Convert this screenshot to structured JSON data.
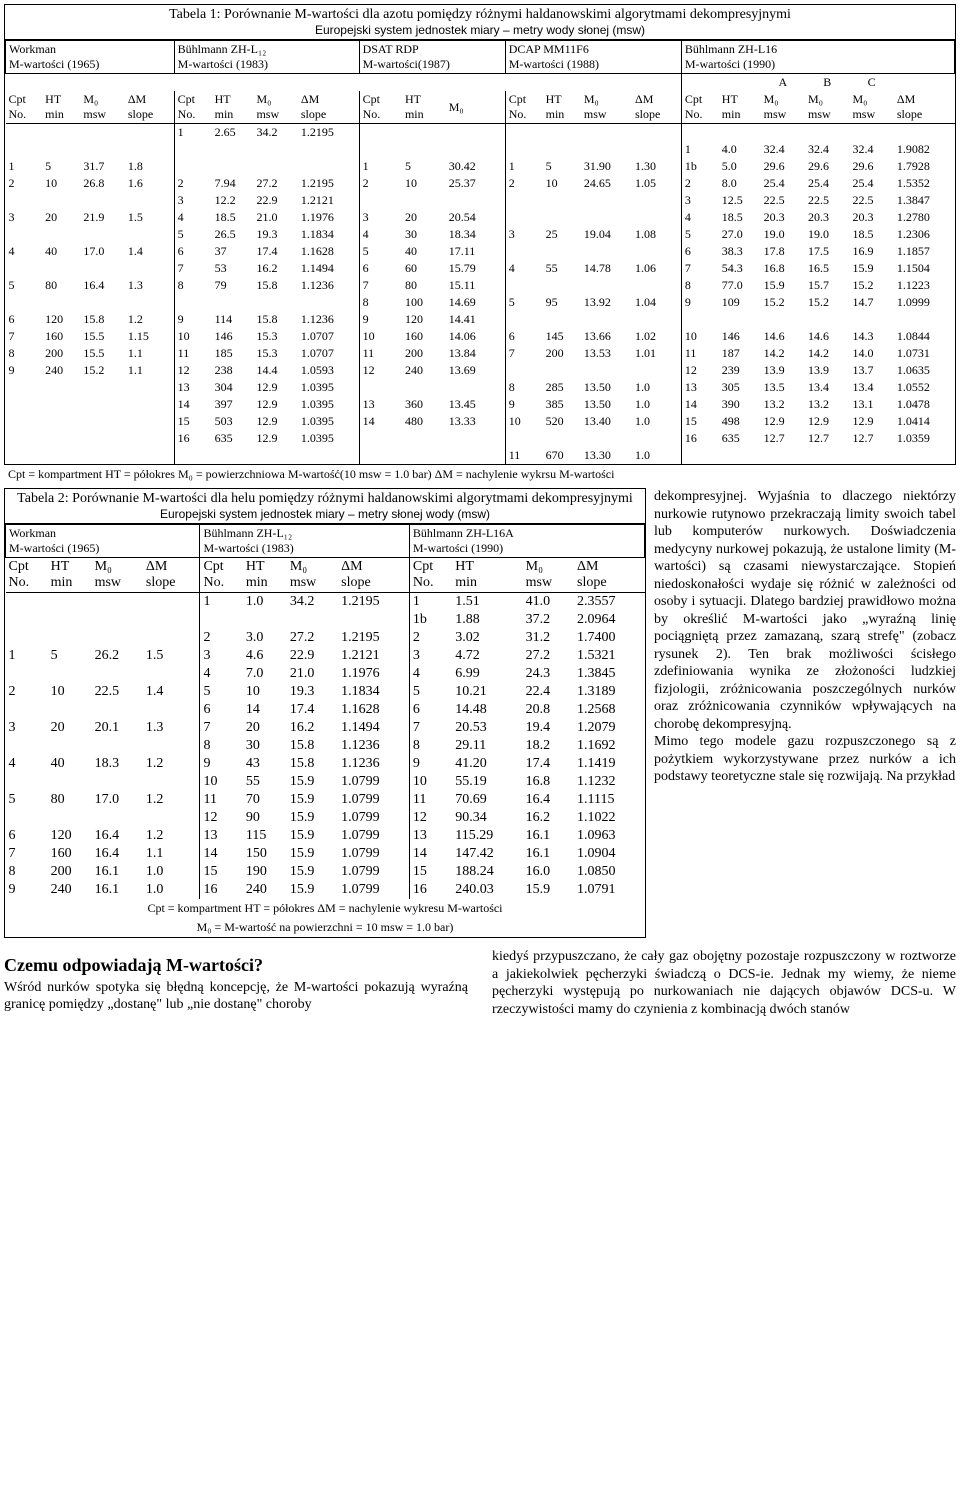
{
  "table1": {
    "title": "Tabela 1: Porównanie M-wartości dla azotu pomiędzy różnymi haldanowskimi algorytmami dekompresyjnymi",
    "subtitle": "Europejski system jednostek miary – metry wody słonej (msw)",
    "algos": [
      {
        "name": "Workman",
        "sub": "M-wartości (1965)",
        "cols": [
          "Cpt No.",
          "HT min",
          "M₀ msw",
          "ΔM slope"
        ]
      },
      {
        "name": "Bühlmann ZH-L₁₂",
        "sub": "M-wartości (1983)",
        "cols": [
          "Cpt No.",
          "HT min",
          "M₀ msw",
          "ΔM slope"
        ]
      },
      {
        "name": "DSAT RDP",
        "sub": "M-wartości(1987)",
        "cols": [
          "Cpt No.",
          "HT min",
          "M₀"
        ]
      },
      {
        "name": "DCAP MM11F6",
        "sub": "M-wartości (1988)",
        "cols": [
          "Cpt No.",
          "HT min",
          "M₀ msw",
          "ΔM slope"
        ]
      },
      {
        "name": "Bühlmann ZH-L16",
        "sub": "M-wartości (1990)",
        "cols": [
          "Cpt No.",
          "HT min",
          "A M₀ msw",
          "B M₀ msw",
          "C M₀ msw",
          "ΔM slope"
        ]
      }
    ],
    "rows": [
      {
        "w": [
          "",
          "",
          "",
          ""
        ],
        "z12": [
          "1",
          "2.65",
          "34.2",
          "1.2195"
        ],
        "dsat": [
          "",
          "",
          ""
        ],
        "dcap": [
          "",
          "",
          "",
          ""
        ],
        "z16": [
          "",
          "",
          "",
          "",
          "",
          ""
        ]
      },
      {
        "w": [
          "",
          "",
          "",
          ""
        ],
        "z12": [
          "",
          "",
          "",
          ""
        ],
        "dsat": [
          "",
          "",
          ""
        ],
        "dcap": [
          "",
          "",
          "",
          ""
        ],
        "z16": [
          "1",
          "4.0",
          "32.4",
          "32.4",
          "32.4",
          "1.9082"
        ]
      },
      {
        "w": [
          "1",
          "5",
          "31.7",
          "1.8"
        ],
        "z12": [
          "",
          "",
          "",
          ""
        ],
        "dsat": [
          "1",
          "5",
          "30.42"
        ],
        "dcap": [
          "1",
          "5",
          "31.90",
          "1.30"
        ],
        "z16": [
          "1b",
          "5.0",
          "29.6",
          "29.6",
          "29.6",
          "1.7928"
        ]
      },
      {
        "w": [
          "2",
          "10",
          "26.8",
          "1.6"
        ],
        "z12": [
          "2",
          "7.94",
          "27.2",
          "1.2195"
        ],
        "dsat": [
          "2",
          "10",
          "25.37"
        ],
        "dcap": [
          "2",
          "10",
          "24.65",
          "1.05"
        ],
        "z16": [
          "2",
          "8.0",
          "25.4",
          "25.4",
          "25.4",
          "1.5352"
        ]
      },
      {
        "w": [
          "",
          "",
          "",
          ""
        ],
        "z12": [
          "3",
          "12.2",
          "22.9",
          "1.2121"
        ],
        "dsat": [
          "",
          "",
          ""
        ],
        "dcap": [
          "",
          "",
          "",
          ""
        ],
        "z16": [
          "3",
          "12.5",
          "22.5",
          "22.5",
          "22.5",
          "1.3847"
        ]
      },
      {
        "w": [
          "3",
          "20",
          "21.9",
          "1.5"
        ],
        "z12": [
          "4",
          "18.5",
          "21.0",
          "1.1976"
        ],
        "dsat": [
          "3",
          "20",
          "20.54"
        ],
        "dcap": [
          "",
          "",
          "",
          ""
        ],
        "z16": [
          "4",
          "18.5",
          "20.3",
          "20.3",
          "20.3",
          "1.2780"
        ]
      },
      {
        "w": [
          "",
          "",
          "",
          ""
        ],
        "z12": [
          "5",
          "26.5",
          "19.3",
          "1.1834"
        ],
        "dsat": [
          "4",
          "30",
          "18.34"
        ],
        "dcap": [
          "3",
          "25",
          "19.04",
          "1.08"
        ],
        "z16": [
          "5",
          "27.0",
          "19.0",
          "19.0",
          "18.5",
          "1.2306"
        ]
      },
      {
        "w": [
          "4",
          "40",
          "17.0",
          "1.4"
        ],
        "z12": [
          "6",
          "37",
          "17.4",
          "1.1628"
        ],
        "dsat": [
          "5",
          "40",
          "17.11"
        ],
        "dcap": [
          "",
          "",
          "",
          ""
        ],
        "z16": [
          "6",
          "38.3",
          "17.8",
          "17.5",
          "16.9",
          "1.1857"
        ]
      },
      {
        "w": [
          "",
          "",
          "",
          ""
        ],
        "z12": [
          "7",
          "53",
          "16.2",
          "1.1494"
        ],
        "dsat": [
          "6",
          "60",
          "15.79"
        ],
        "dcap": [
          "4",
          "55",
          "14.78",
          "1.06"
        ],
        "z16": [
          "7",
          "54.3",
          "16.8",
          "16.5",
          "15.9",
          "1.1504"
        ]
      },
      {
        "w": [
          "5",
          "80",
          "16.4",
          "1.3"
        ],
        "z12": [
          "8",
          "79",
          "15.8",
          "1.1236"
        ],
        "dsat": [
          "7",
          "80",
          "15.11"
        ],
        "dcap": [
          "",
          "",
          "",
          ""
        ],
        "z16": [
          "8",
          "77.0",
          "15.9",
          "15.7",
          "15.2",
          "1.1223"
        ]
      },
      {
        "w": [
          "",
          "",
          "",
          ""
        ],
        "z12": [
          "",
          "",
          "",
          ""
        ],
        "dsat": [
          "8",
          "100",
          "14.69"
        ],
        "dcap": [
          "5",
          "95",
          "13.92",
          "1.04"
        ],
        "z16": [
          "9",
          "109",
          "15.2",
          "15.2",
          "14.7",
          "1.0999"
        ]
      },
      {
        "w": [
          "6",
          "120",
          "15.8",
          "1.2"
        ],
        "z12": [
          "9",
          "114",
          "15.8",
          "1.1236"
        ],
        "dsat": [
          "9",
          "120",
          "14.41"
        ],
        "dcap": [
          "",
          "",
          "",
          ""
        ],
        "z16": [
          "",
          "",
          "",
          "",
          "",
          ""
        ]
      },
      {
        "w": [
          "7",
          "160",
          "15.5",
          "1.15"
        ],
        "z12": [
          "10",
          "146",
          "15.3",
          "1.0707"
        ],
        "dsat": [
          "10",
          "160",
          "14.06"
        ],
        "dcap": [
          "6",
          "145",
          "13.66",
          "1.02"
        ],
        "z16": [
          "10",
          "146",
          "14.6",
          "14.6",
          "14.3",
          "1.0844"
        ]
      },
      {
        "w": [
          "8",
          "200",
          "15.5",
          "1.1"
        ],
        "z12": [
          "11",
          "185",
          "15.3",
          "1.0707"
        ],
        "dsat": [
          "11",
          "200",
          "13.84"
        ],
        "dcap": [
          "7",
          "200",
          "13.53",
          "1.01"
        ],
        "z16": [
          "11",
          "187",
          "14.2",
          "14.2",
          "14.0",
          "1.0731"
        ]
      },
      {
        "w": [
          "9",
          "240",
          "15.2",
          "1.1"
        ],
        "z12": [
          "12",
          "238",
          "14.4",
          "1.0593"
        ],
        "dsat": [
          "12",
          "240",
          "13.69"
        ],
        "dcap": [
          "",
          "",
          "",
          ""
        ],
        "z16": [
          "12",
          "239",
          "13.9",
          "13.9",
          "13.7",
          "1.0635"
        ]
      },
      {
        "w": [
          "",
          "",
          "",
          ""
        ],
        "z12": [
          "13",
          "304",
          "12.9",
          "1.0395"
        ],
        "dsat": [
          "",
          "",
          ""
        ],
        "dcap": [
          "8",
          "285",
          "13.50",
          "1.0"
        ],
        "z16": [
          "13",
          "305",
          "13.5",
          "13.4",
          "13.4",
          "1.0552"
        ]
      },
      {
        "w": [
          "",
          "",
          "",
          ""
        ],
        "z12": [
          "14",
          "397",
          "12.9",
          "1.0395"
        ],
        "dsat": [
          "13",
          "360",
          "13.45"
        ],
        "dcap": [
          "9",
          "385",
          "13.50",
          "1.0"
        ],
        "z16": [
          "14",
          "390",
          "13.2",
          "13.2",
          "13.1",
          "1.0478"
        ]
      },
      {
        "w": [
          "",
          "",
          "",
          ""
        ],
        "z12": [
          "15",
          "503",
          "12.9",
          "1.0395"
        ],
        "dsat": [
          "14",
          "480",
          "13.33"
        ],
        "dcap": [
          "10",
          "520",
          "13.40",
          "1.0"
        ],
        "z16": [
          "15",
          "498",
          "12.9",
          "12.9",
          "12.9",
          "1.0414"
        ]
      },
      {
        "w": [
          "",
          "",
          "",
          ""
        ],
        "z12": [
          "16",
          "635",
          "12.9",
          "1.0395"
        ],
        "dsat": [
          "",
          "",
          ""
        ],
        "dcap": [
          "",
          "",
          "",
          ""
        ],
        "z16": [
          "16",
          "635",
          "12.7",
          "12.7",
          "12.7",
          "1.0359"
        ]
      },
      {
        "w": [
          "",
          "",
          "",
          ""
        ],
        "z12": [
          "",
          "",
          "",
          ""
        ],
        "dsat": [
          "",
          "",
          ""
        ],
        "dcap": [
          "11",
          "670",
          "13.30",
          "1.0"
        ],
        "z16": [
          "",
          "",
          "",
          "",
          "",
          ""
        ]
      }
    ],
    "legend": "Cpt = kompartment   HT = półokres   M₀ = powierzchniowa M-wartość(10 msw = 1.0 bar)   ΔM = nachylenie wykrsu M-wartości"
  },
  "table2": {
    "title": "Tabela 2: Porównanie M-wartości dla helu pomiędzy różnymi haldanowskimi algorytmami dekompresyjnymi",
    "subtitle": "Europejski system jednostek miary – metry słonej wody (msw)",
    "algos": [
      {
        "name": "Workman",
        "sub": "M-wartości  (1965)",
        "cols": [
          "Cpt No.",
          "HT min",
          "M₀ msw",
          "ΔM slope"
        ]
      },
      {
        "name": "Bühlmann ZH-L₁₂",
        "sub": "M-wartości  (1983)",
        "cols": [
          "Cpt No.",
          "HT min",
          "M₀ msw",
          "ΔM slope"
        ]
      },
      {
        "name": "Bühlmann ZH-L16A",
        "sub": "M-wartości  (1990)",
        "cols": [
          "Cpt No.",
          "HT min",
          "M₀ msw",
          "ΔM slope"
        ]
      }
    ],
    "rows": [
      {
        "w": [
          "",
          "",
          "",
          ""
        ],
        "z12": [
          "1",
          "1.0",
          "34.2",
          "1.2195"
        ],
        "z16": [
          "1",
          "1.51",
          "41.0",
          "2.3557"
        ]
      },
      {
        "w": [
          "",
          "",
          "",
          ""
        ],
        "z12": [
          "",
          "",
          "",
          ""
        ],
        "z16": [
          "1b",
          "1.88",
          "37.2",
          "2.0964"
        ]
      },
      {
        "w": [
          "",
          "",
          "",
          ""
        ],
        "z12": [
          "2",
          "3.0",
          "27.2",
          "1.2195"
        ],
        "z16": [
          "2",
          "3.02",
          "31.2",
          "1.7400"
        ]
      },
      {
        "w": [
          "1",
          "5",
          "26.2",
          "1.5"
        ],
        "z12": [
          "3",
          "4.6",
          "22.9",
          "1.2121"
        ],
        "z16": [
          "3",
          "4.72",
          "27.2",
          "1.5321"
        ]
      },
      {
        "w": [
          "",
          "",
          "",
          ""
        ],
        "z12": [
          "4",
          "7.0",
          "21.0",
          "1.1976"
        ],
        "z16": [
          "4",
          "6.99",
          "24.3",
          "1.3845"
        ]
      },
      {
        "w": [
          "2",
          "10",
          "22.5",
          "1.4"
        ],
        "z12": [
          "5",
          "10",
          "19.3",
          "1.1834"
        ],
        "z16": [
          "5",
          "10.21",
          "22.4",
          "1.3189"
        ]
      },
      {
        "w": [
          "",
          "",
          "",
          ""
        ],
        "z12": [
          "6",
          "14",
          "17.4",
          "1.1628"
        ],
        "z16": [
          "6",
          "14.48",
          "20.8",
          "1.2568"
        ]
      },
      {
        "w": [
          "3",
          "20",
          "20.1",
          "1.3"
        ],
        "z12": [
          "7",
          "20",
          "16.2",
          "1.1494"
        ],
        "z16": [
          "7",
          "20.53",
          "19.4",
          "1.2079"
        ]
      },
      {
        "w": [
          "",
          "",
          "",
          ""
        ],
        "z12": [
          "8",
          "30",
          "15.8",
          "1.1236"
        ],
        "z16": [
          "8",
          "29.11",
          "18.2",
          "1.1692"
        ]
      },
      {
        "w": [
          "4",
          "40",
          "18.3",
          "1.2"
        ],
        "z12": [
          "9",
          "43",
          "15.8",
          "1.1236"
        ],
        "z16": [
          "9",
          "41.20",
          "17.4",
          "1.1419"
        ]
      },
      {
        "w": [
          "",
          "",
          "",
          ""
        ],
        "z12": [
          "10",
          "55",
          "15.9",
          "1.0799"
        ],
        "z16": [
          "10",
          "55.19",
          "16.8",
          "1.1232"
        ]
      },
      {
        "w": [
          "5",
          "80",
          "17.0",
          "1.2"
        ],
        "z12": [
          "11",
          "70",
          "15.9",
          "1.0799"
        ],
        "z16": [
          "11",
          "70.69",
          "16.4",
          "1.1115"
        ]
      },
      {
        "w": [
          "",
          "",
          "",
          ""
        ],
        "z12": [
          "12",
          "90",
          "15.9",
          "1.0799"
        ],
        "z16": [
          "12",
          "90.34",
          "16.2",
          "1.1022"
        ]
      },
      {
        "w": [
          "6",
          "120",
          "16.4",
          "1.2"
        ],
        "z12": [
          "13",
          "115",
          "15.9",
          "1.0799"
        ],
        "z16": [
          "13",
          "115.29",
          "16.1",
          "1.0963"
        ]
      },
      {
        "w": [
          "7",
          "160",
          "16.4",
          "1.1"
        ],
        "z12": [
          "14",
          "150",
          "15.9",
          "1.0799"
        ],
        "z16": [
          "14",
          "147.42",
          "16.1",
          "1.0904"
        ]
      },
      {
        "w": [
          "8",
          "200",
          "16.1",
          "1.0"
        ],
        "z12": [
          "15",
          "190",
          "15.9",
          "1.0799"
        ],
        "z16": [
          "15",
          "188.24",
          "16.0",
          "1.0850"
        ]
      },
      {
        "w": [
          "9",
          "240",
          "16.1",
          "1.0"
        ],
        "z12": [
          "16",
          "240",
          "15.9",
          "1.0799"
        ],
        "z16": [
          "16",
          "240.03",
          "15.9",
          "1.0791"
        ]
      }
    ],
    "legend1": "Cpt = kompartment        HT = półokres    ΔM = nachylenie wykresu M-wartości",
    "legend2": "M₀ = M-wartość na powierzchni =      10 msw = 1.0 bar)"
  },
  "side_text": "dekompresyjnej. Wyjaśnia to dlaczego niektórzy nurkowie rutynowo przekraczają limity swoich tabel lub komputerów nurkowych. Doświadczenia medycyny nurkowej pokazują, że ustalone limity (M-wartości) są czasami niewystarczające. Stopień niedoskonałości wydaje się różnić w zależności od osoby i sytuacji. Dlatego bardziej prawidłowo można by określić M-wartości jako „wyraźną linię pociągniętą przez zamazaną, szarą strefę\" (zobacz rysunek 2). Ten brak możliwości ścisłego zdefiniowania wynika ze złożoności ludzkiej fizjologii, zróżnicowania poszczególnych nurków oraz zróżnicowania czynników wpływających na chorobę dekompresyjną.\nMimo tego modele gazu rozpuszczonego są z pożytkiem wykorzystywane przez nurków a ich podstawy teoretyczne stale się rozwijają.  Na przykład",
  "q_heading": "Czemu odpowiadają M-wartości?",
  "left_col": "Wśród nurków spotyka się błędną koncepcję, że M-wartości pokazują wyraźną granicę pomiędzy „dostanę\" lub „nie dostanę\" choroby",
  "right_col": "kiedyś przypuszczano, że cały gaz obojętny pozostaje rozpuszczony w roztworze a jakiekolwiek pęcherzyki świadczą o DCS-ie. Jednak my wiemy, że nieme pęcherzyki występują po nurkowaniach nie dających objawów DCS-u. W rzeczywistości mamy do czynienia z kombinacją dwóch stanów"
}
